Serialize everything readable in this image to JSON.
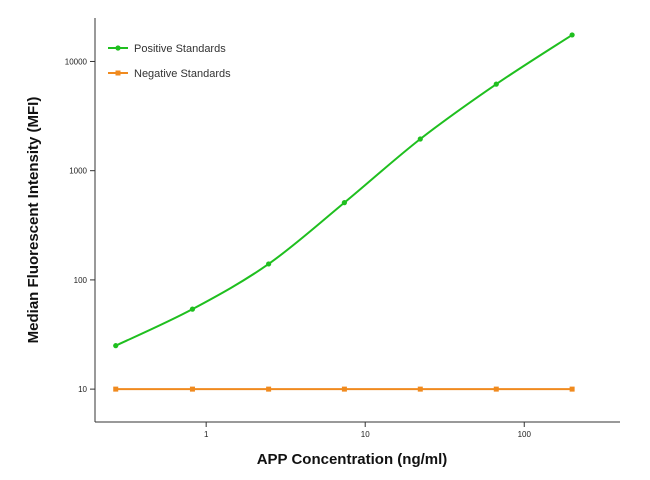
{
  "chart_data": {
    "type": "line",
    "title": "",
    "xlabel": "APP Concentration (ng/ml)",
    "ylabel": "Median Fluorescent Intensity (MFI)",
    "xscale": "log",
    "yscale": "log",
    "xlim": [
      0.2,
      400
    ],
    "ylim": [
      5,
      25000
    ],
    "x_ticks": [
      {
        "value": 1,
        "label": "1"
      },
      {
        "value": 10,
        "label": "10"
      },
      {
        "value": 100,
        "label": "100"
      }
    ],
    "y_ticks": [
      {
        "value": 10,
        "label": "10"
      },
      {
        "value": 100,
        "label": "100"
      },
      {
        "value": 1000,
        "label": "1000"
      },
      {
        "value": 10000,
        "label": "10000"
      }
    ],
    "grid": false,
    "legend_position": "top-left",
    "series": [
      {
        "name": "Positive Standards",
        "color": "#1fbf1f",
        "marker": "circle",
        "curve": "smooth-fit",
        "x": [
          0.27,
          0.82,
          2.47,
          7.4,
          22.2,
          66.7,
          200
        ],
        "y": [
          25,
          54,
          140,
          510,
          1950,
          6200,
          17500
        ]
      },
      {
        "name": "Negative Standards",
        "color": "#f08a1e",
        "marker": "square",
        "curve": "linear",
        "x": [
          0.27,
          0.82,
          2.47,
          7.4,
          22.2,
          66.7,
          200
        ],
        "y": [
          10,
          10,
          10,
          10,
          10,
          10,
          10
        ]
      }
    ]
  }
}
